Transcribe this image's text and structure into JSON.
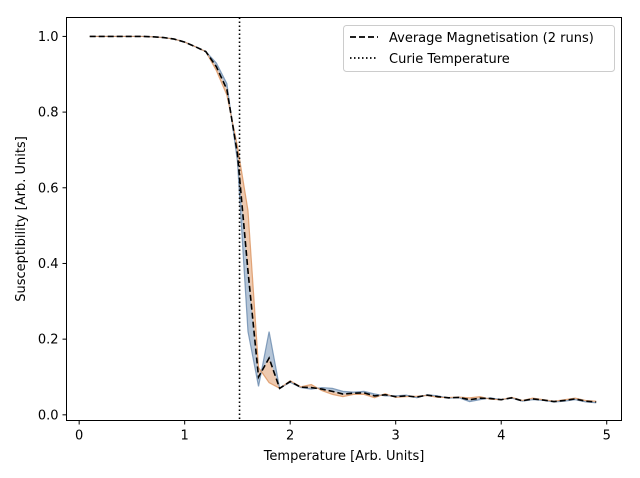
{
  "chart_data": {
    "type": "line",
    "title": "",
    "xlabel": "Temperature [Arb. Units]",
    "ylabel": "Susceptibility [Arb. Units]",
    "xlim": [
      -0.12,
      5.14
    ],
    "ylim": [
      -0.015,
      1.05
    ],
    "xticks": [
      0,
      1,
      2,
      3,
      4,
      5
    ],
    "xtick_labels": [
      "0",
      "1",
      "2",
      "3",
      "4",
      "5"
    ],
    "yticks": [
      0.0,
      0.2,
      0.4,
      0.6,
      0.8,
      1.0
    ],
    "ytick_labels": [
      "0.0",
      "0.2",
      "0.4",
      "0.6",
      "0.8",
      "1.0"
    ],
    "grid": false,
    "legend_position": "top-right",
    "curie_temperature": 1.52,
    "x": [
      0.1,
      0.2,
      0.3,
      0.4,
      0.5,
      0.6,
      0.7,
      0.8,
      0.9,
      1.0,
      1.1,
      1.2,
      1.3,
      1.4,
      1.5,
      1.6,
      1.7,
      1.8,
      1.9,
      2.0,
      2.1,
      2.2,
      2.3,
      2.4,
      2.5,
      2.6,
      2.7,
      2.8,
      2.9,
      3.0,
      3.1,
      3.2,
      3.3,
      3.4,
      3.5,
      3.6,
      3.7,
      3.8,
      3.9,
      4.0,
      4.1,
      4.2,
      4.3,
      4.4,
      4.5,
      4.6,
      4.7,
      4.8,
      4.9
    ],
    "series": [
      {
        "name": "Average Magnetisation (2 runs)",
        "style": "dashed",
        "color": "#000000",
        "values": [
          1.0,
          1.0,
          1.0,
          1.0,
          1.0,
          1.0,
          0.999,
          0.997,
          0.993,
          0.985,
          0.973,
          0.96,
          0.92,
          0.86,
          0.69,
          0.38,
          0.1,
          0.15,
          0.07,
          0.088,
          0.073,
          0.072,
          0.068,
          0.062,
          0.055,
          0.057,
          0.058,
          0.05,
          0.053,
          0.048,
          0.05,
          0.047,
          0.052,
          0.048,
          0.045,
          0.046,
          0.04,
          0.044,
          0.043,
          0.04,
          0.045,
          0.037,
          0.042,
          0.039,
          0.035,
          0.038,
          0.042,
          0.036,
          0.034
        ]
      },
      {
        "name": "Curie Temperature",
        "style": "dotted",
        "color": "#000000"
      }
    ],
    "runs": [
      {
        "color": "#5b7fa6",
        "values": [
          1.0,
          1.0,
          1.0,
          1.0,
          1.0,
          1.0,
          0.999,
          0.997,
          0.993,
          0.985,
          0.973,
          0.96,
          0.93,
          0.875,
          0.67,
          0.22,
          0.075,
          0.22,
          0.07,
          0.086,
          0.072,
          0.068,
          0.072,
          0.07,
          0.062,
          0.06,
          0.062,
          0.055,
          0.05,
          0.05,
          0.052,
          0.045,
          0.053,
          0.05,
          0.044,
          0.045,
          0.035,
          0.04,
          0.045,
          0.04,
          0.044,
          0.036,
          0.04,
          0.038,
          0.034,
          0.036,
          0.04,
          0.034,
          0.032
        ]
      },
      {
        "color": "#d9894f",
        "values": [
          1.0,
          1.0,
          1.0,
          1.0,
          1.0,
          1.0,
          0.999,
          0.997,
          0.993,
          0.985,
          0.973,
          0.96,
          0.91,
          0.845,
          0.71,
          0.54,
          0.125,
          0.085,
          0.07,
          0.09,
          0.074,
          0.08,
          0.064,
          0.054,
          0.048,
          0.054,
          0.054,
          0.045,
          0.056,
          0.046,
          0.048,
          0.049,
          0.051,
          0.046,
          0.046,
          0.047,
          0.045,
          0.048,
          0.041,
          0.04,
          0.046,
          0.038,
          0.044,
          0.04,
          0.036,
          0.04,
          0.044,
          0.038,
          0.036
        ]
      }
    ]
  }
}
